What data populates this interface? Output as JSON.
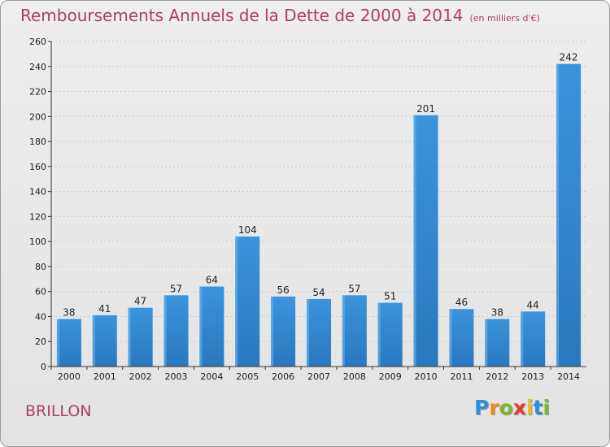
{
  "title": "Remboursements Annuels de la Dette de 2000 à 2014",
  "subtitle": "(en milliers d'€)",
  "commune": "BRILLON",
  "logo": {
    "letters": [
      "P",
      "r",
      "o",
      "x",
      "i",
      "t",
      "i"
    ],
    "colors": [
      "#2e8fd8",
      "#f08a1c",
      "#7bb82e",
      "#e03a2e",
      "#f0b81c",
      "#2e8fd8",
      "#7bb82e"
    ]
  },
  "colors": {
    "bar": "#3a94dc",
    "bar_dark": "#2a78bf",
    "title": "#b03a6a"
  },
  "chart_data": {
    "type": "bar",
    "categories": [
      "2000",
      "2001",
      "2002",
      "2003",
      "2004",
      "2005",
      "2006",
      "2007",
      "2008",
      "2009",
      "2010",
      "2011",
      "2012",
      "2013",
      "2014"
    ],
    "values": [
      38,
      41,
      47,
      57,
      64,
      104,
      56,
      54,
      57,
      51,
      201,
      46,
      38,
      44,
      242
    ],
    "ylim": [
      0,
      260
    ],
    "yticks": [
      0,
      20,
      40,
      60,
      80,
      100,
      120,
      140,
      160,
      180,
      200,
      220,
      240,
      260
    ],
    "grid": true,
    "data_labels": true
  }
}
